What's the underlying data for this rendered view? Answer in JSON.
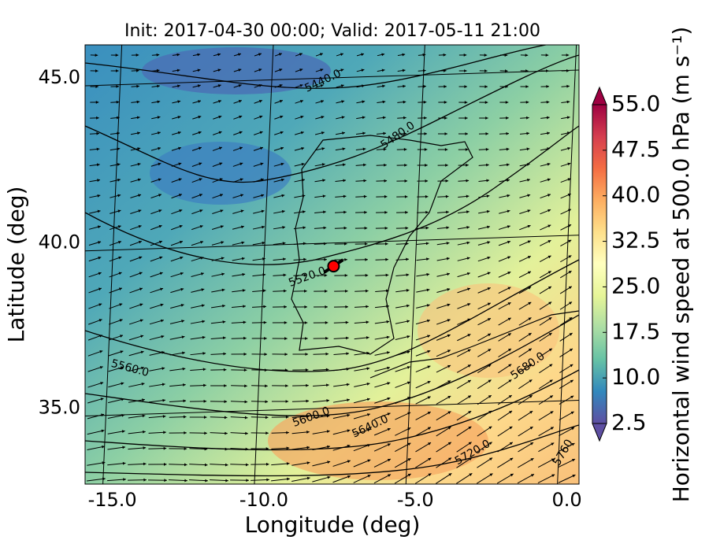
{
  "chart_data": {
    "type": "map",
    "title": "Init: 2017-04-30 00:00; Valid: 2017-05-11 21:00",
    "xlabel": "Longitude (deg)",
    "ylabel": "Latitude (deg)",
    "xlim": [
      -15.9,
      0.4
    ],
    "ylim": [
      32.7,
      46.0
    ],
    "xticks": [
      {
        "value": -15,
        "label": "-15.0"
      },
      {
        "value": -10,
        "label": "-10.0"
      },
      {
        "value": -5,
        "label": "-5.0"
      },
      {
        "value": 0,
        "label": "0.0"
      }
    ],
    "yticks": [
      {
        "value": 35,
        "label": "35.0"
      },
      {
        "value": 40,
        "label": "40.0"
      },
      {
        "value": 45,
        "label": "45.0"
      }
    ],
    "grid": true,
    "colorbar": {
      "label": "Horizontal wind speed at 500.0 hPa (m s⁻¹)",
      "lim": [
        2.5,
        55
      ],
      "ticks": [
        2.5,
        {
          "value": 10,
          "label": "10.0"
        },
        17.5,
        {
          "value": 25,
          "label": "25.0"
        },
        32.5,
        {
          "value": 40,
          "label": "40.0"
        },
        47.5,
        {
          "value": 55,
          "label": "55.0"
        }
      ],
      "colors": [
        "#5e4fa2",
        "#3288bd",
        "#66c2a5",
        "#abdda4",
        "#e6f598",
        "#ffffbf",
        "#fee08b",
        "#fdae61",
        "#f46d43",
        "#d53e4f",
        "#9e0142"
      ]
    },
    "contour_labels": [
      "5440.0",
      "5480.0",
      "5520.0",
      "5560.0",
      "5600.0",
      "5640.0",
      "5680.0",
      "5720.0",
      "5760"
    ],
    "marker": {
      "lon": -7.7,
      "lat": 39.3,
      "color": "#ff0000"
    }
  }
}
